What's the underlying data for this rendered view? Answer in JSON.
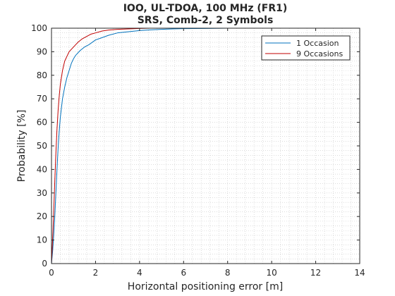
{
  "chart_data": {
    "type": "line",
    "title": [
      "IOO, UL-TDOA, 100 MHz (FR1)",
      "SRS, Comb-2, 2 Symbols"
    ],
    "xlabel": "Horizontal positioning error [m]",
    "ylabel": "Probability [%]",
    "xlim": [
      0,
      14
    ],
    "ylim": [
      0,
      100
    ],
    "xticks": [
      0,
      2,
      4,
      6,
      8,
      10,
      12,
      14
    ],
    "yticks": [
      0,
      10,
      20,
      30,
      40,
      50,
      60,
      70,
      80,
      90,
      100
    ],
    "grid": "minor-dotted",
    "legend_position": "top-right",
    "series": [
      {
        "name": "1 Occasion",
        "color": "#0072BD",
        "x": [
          0,
          0.05,
          0.1,
          0.15,
          0.2,
          0.25,
          0.3,
          0.35,
          0.4,
          0.5,
          0.6,
          0.7,
          0.8,
          0.9,
          1.0,
          1.1,
          1.2,
          1.3,
          1.5,
          1.7,
          2.0,
          2.3,
          2.6,
          3.0,
          3.5,
          4.0,
          4.5,
          5.0,
          5.5,
          6.0,
          7.0,
          8.0,
          9.0,
          10.0,
          11.0,
          12.0,
          12.5
        ],
        "y": [
          0,
          5,
          12,
          20,
          30,
          40,
          49,
          56,
          62,
          70,
          75,
          79,
          82,
          85,
          87,
          88.5,
          89.5,
          90.5,
          92,
          93,
          95,
          96,
          97,
          98,
          98.5,
          99,
          99.3,
          99.5,
          99.7,
          99.8,
          99.9,
          100,
          100,
          100,
          100,
          100,
          100
        ]
      },
      {
        "name": "9 Occasions",
        "color": "#C00000",
        "x": [
          0,
          0.05,
          0.1,
          0.15,
          0.2,
          0.25,
          0.3,
          0.35,
          0.4,
          0.5,
          0.6,
          0.7,
          0.8,
          0.9,
          1.0,
          1.2,
          1.4,
          1.6,
          1.8,
          2.0,
          2.3,
          2.6,
          3.0,
          3.5,
          4.0,
          4.5,
          4.7
        ],
        "y": [
          0,
          10,
          22,
          35,
          47,
          57,
          65,
          71,
          76,
          82,
          86,
          88,
          90,
          91,
          92,
          94,
          95.5,
          96.5,
          97.5,
          98,
          98.8,
          99.2,
          99.5,
          99.7,
          99.9,
          100,
          100
        ]
      }
    ]
  }
}
